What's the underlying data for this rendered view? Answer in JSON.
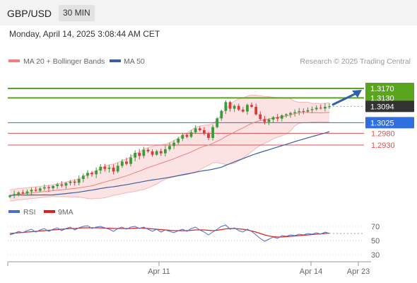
{
  "header": {
    "symbol": "GBP/USD",
    "timeframe": "30 MIN",
    "datetime": "Monday, April 14, 2025 3:08:44 AM CET"
  },
  "chart_data": [
    {
      "type": "candlestick",
      "title": "",
      "legend": [
        {
          "name": "MA 20 + Bollinger Bands",
          "color": "#f08080"
        },
        {
          "name": "MA 50",
          "color": "#3a5fa0"
        }
      ],
      "credit": "Research © 2025 Trading Central",
      "ylim": [
        1.266,
        1.326
      ],
      "price_levels": [
        {
          "label": "1.3170",
          "value": 1.317,
          "kind": "resistance",
          "color": "#5aa51e"
        },
        {
          "label": "1.3130",
          "value": 1.313,
          "kind": "resistance",
          "color": "#5aa51e"
        },
        {
          "label": "1.3094",
          "value": 1.3094,
          "kind": "last",
          "color": "#333333"
        },
        {
          "label": "1.3025",
          "value": 1.3025,
          "kind": "pivot",
          "color": "#2f6fe0"
        },
        {
          "label": "1.2980",
          "value": 1.298,
          "kind": "support",
          "color": "#e05050"
        },
        {
          "label": "1.2930",
          "value": 1.293,
          "kind": "support",
          "color": "#e05050"
        }
      ],
      "x_ticks": [
        "Apr 11",
        "Apr 14",
        "Apr 23"
      ],
      "close": [
        1.2716,
        1.2722,
        1.2729,
        1.2725,
        1.2733,
        1.274,
        1.2736,
        1.2746,
        1.2751,
        1.2747,
        1.2756,
        1.2763,
        1.2758,
        1.2769,
        1.2775,
        1.277,
        1.2786,
        1.28,
        1.2812,
        1.2806,
        1.2822,
        1.2838,
        1.2829,
        1.2834,
        1.2818,
        1.2842,
        1.286,
        1.285,
        1.2877,
        1.2897,
        1.2884,
        1.291,
        1.2903,
        1.2889,
        1.2904,
        1.2895,
        1.2912,
        1.2926,
        1.294,
        1.2957,
        1.2973,
        1.2965,
        1.2984,
        1.3001,
        1.2993,
        1.2978,
        1.296,
        1.3006,
        1.3043,
        1.3075,
        1.3112,
        1.3084,
        1.3096,
        1.308,
        1.3072,
        1.31,
        1.3092,
        1.306,
        1.304,
        1.3028,
        1.3038,
        1.3048,
        1.3042,
        1.3056,
        1.306,
        1.3066,
        1.307,
        1.3074,
        1.3072,
        1.3078,
        1.3082,
        1.3088,
        1.3085,
        1.3092,
        1.3094
      ],
      "forecast_arrow": {
        "from": 1.3094,
        "to": 1.317
      }
    },
    {
      "type": "line",
      "legend": [
        {
          "name": "RSI",
          "color": "#4a6fd0"
        },
        {
          "name": "9MA",
          "color": "#e02020"
        }
      ],
      "ylim": [
        20,
        80
      ],
      "y_ticks": [
        "70",
        "50",
        "30"
      ],
      "rsi": [
        58,
        60,
        63,
        61,
        64,
        66,
        62,
        65,
        67,
        63,
        66,
        68,
        64,
        67,
        69,
        65,
        68,
        70,
        71,
        67,
        69,
        70,
        68,
        66,
        63,
        67,
        69,
        66,
        69,
        70,
        67,
        69,
        66,
        63,
        66,
        62,
        65,
        63,
        61,
        64,
        66,
        63,
        67,
        69,
        65,
        62,
        58,
        62,
        66,
        70,
        72,
        66,
        68,
        64,
        62,
        66,
        63,
        58,
        53,
        49,
        52,
        55,
        53,
        57,
        56,
        58,
        57,
        59,
        58,
        60,
        59,
        61,
        59,
        62,
        60
      ],
      "ma9": [
        60,
        60.5,
        61,
        61.5,
        62,
        62.5,
        63,
        63.5,
        64,
        64.5,
        65,
        65.5,
        66,
        66.5,
        67,
        67,
        67.5,
        68,
        68,
        68,
        68,
        68,
        67.5,
        67.5,
        67,
        67,
        67,
        67,
        67,
        67.5,
        67.5,
        67.5,
        67,
        66.5,
        66,
        65.5,
        65,
        64.5,
        64,
        64,
        64,
        64,
        64.5,
        65,
        65,
        65,
        64.5,
        64,
        64.5,
        65.5,
        66.5,
        67,
        67,
        66.5,
        66,
        65,
        63.5,
        62,
        60,
        58,
        56.5,
        55.5,
        55,
        55,
        55.5,
        56,
        56.5,
        57,
        57.5,
        58,
        58.5,
        59,
        59.5,
        60,
        60.5
      ]
    }
  ]
}
